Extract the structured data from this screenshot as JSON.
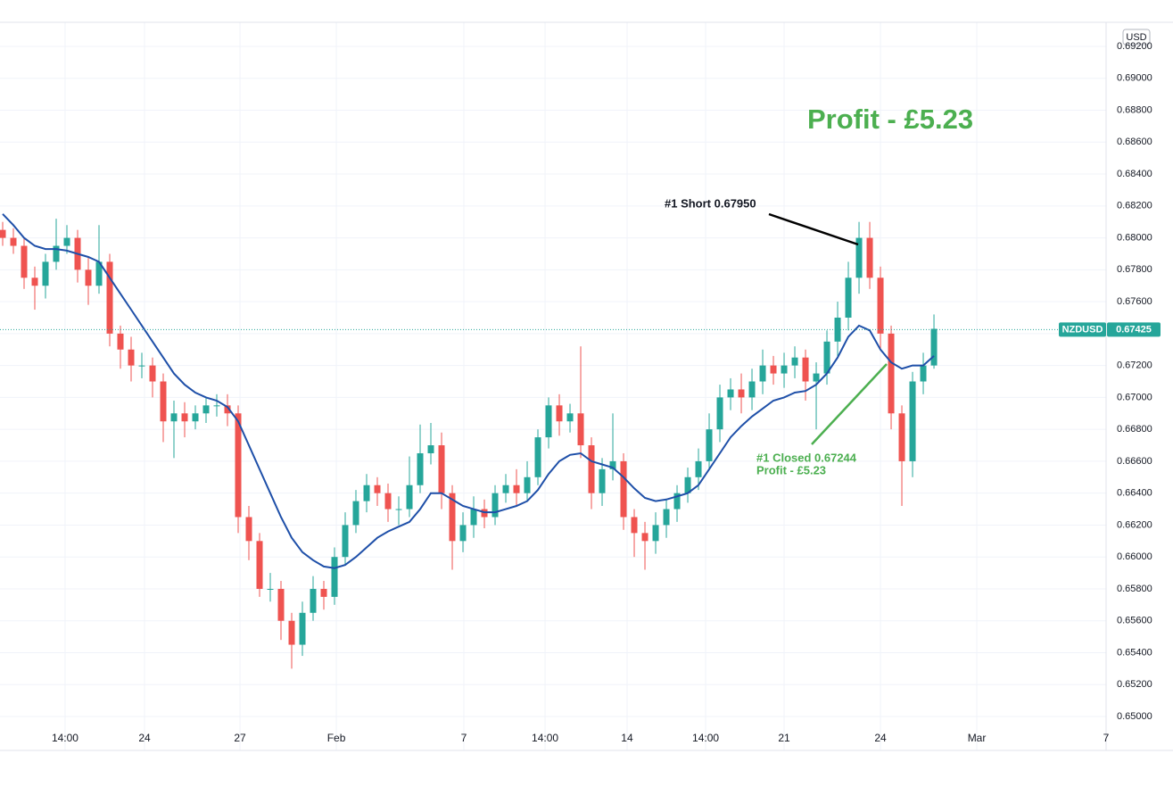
{
  "chart_data": {
    "type": "candlestick",
    "symbol": "NZDUSD",
    "currency": "USD",
    "last_price": 0.67425,
    "headline": "Profit - £5.23",
    "annotations": [
      "#1 Short 0.67950",
      "#1 Closed 0.67244",
      "Profit - £5.23"
    ],
    "up_color": "#26a69a",
    "down_color": "#ef5350",
    "ylim": [
      0.64933,
      0.69351
    ],
    "yticks": [
      {
        "value": 0.65,
        "label": "0.65000"
      },
      {
        "value": 0.652,
        "label": "0.65200"
      },
      {
        "value": 0.654,
        "label": "0.65400"
      },
      {
        "value": 0.656,
        "label": "0.65600"
      },
      {
        "value": 0.658,
        "label": "0.65800"
      },
      {
        "value": 0.66,
        "label": "0.66000"
      },
      {
        "value": 0.662,
        "label": "0.66200"
      },
      {
        "value": 0.664,
        "label": "0.66400"
      },
      {
        "value": 0.666,
        "label": "0.66600"
      },
      {
        "value": 0.668,
        "label": "0.66800"
      },
      {
        "value": 0.67,
        "label": "0.67000"
      },
      {
        "value": 0.672,
        "label": "0.67200"
      },
      {
        "value": 0.674,
        "label": "0.67400"
      },
      {
        "value": 0.676,
        "label": "0.67600"
      },
      {
        "value": 0.678,
        "label": "0.67800"
      },
      {
        "value": 0.68,
        "label": "0.68000"
      },
      {
        "value": 0.682,
        "label": "0.68200"
      },
      {
        "value": 0.684,
        "label": "0.68400"
      },
      {
        "value": 0.686,
        "label": "0.68600"
      },
      {
        "value": 0.688,
        "label": "0.68800"
      },
      {
        "value": 0.69,
        "label": "0.69000"
      },
      {
        "value": 0.692,
        "label": "0.69200"
      }
    ],
    "xlim": [
      -0.25,
      103.08
    ],
    "xticks": [
      {
        "value": 5.83,
        "label": "14:00"
      },
      {
        "value": 13.25,
        "label": "24"
      },
      {
        "value": 22.17,
        "label": "27"
      },
      {
        "value": 31.17,
        "label": "Feb"
      },
      {
        "value": 43.08,
        "label": "7"
      },
      {
        "value": 50.67,
        "label": "14:00"
      },
      {
        "value": 58.33,
        "label": "14"
      },
      {
        "value": 65.67,
        "label": "14:00"
      },
      {
        "value": 73,
        "label": "21"
      },
      {
        "value": 82,
        "label": "24"
      },
      {
        "value": 91,
        "label": "Mar"
      },
      {
        "value": 103.08,
        "label": "7"
      }
    ],
    "open": [
      0.6805,
      0.68,
      0.6795,
      0.6775,
      0.677,
      0.6785,
      0.6795,
      0.68,
      0.678,
      0.677,
      0.6785,
      0.674,
      0.673,
      0.672,
      0.672,
      0.671,
      0.6685,
      0.669,
      0.6685,
      0.669,
      0.6695,
      0.6695,
      0.669,
      0.6625,
      0.661,
      0.658,
      0.658,
      0.656,
      0.6545,
      0.6565,
      0.658,
      0.6575,
      0.66,
      0.662,
      0.6635,
      0.6645,
      0.664,
      0.663,
      0.663,
      0.6645,
      0.6665,
      0.667,
      0.664,
      0.661,
      0.662,
      0.663,
      0.6625,
      0.664,
      0.6645,
      0.664,
      0.665,
      0.6675,
      0.6695,
      0.6685,
      0.669,
      0.667,
      0.664,
      0.6655,
      0.666,
      0.6625,
      0.6615,
      0.661,
      0.662,
      0.663,
      0.664,
      0.665,
      0.666,
      0.668,
      0.67,
      0.6705,
      0.67,
      0.671,
      0.672,
      0.6715,
      0.672,
      0.6725,
      0.671,
      0.6715,
      0.6735,
      0.675,
      0.6775,
      0.68,
      0.6775,
      0.674,
      0.669,
      0.666,
      0.671,
      0.672
    ],
    "high": [
      0.681,
      0.6806,
      0.68,
      0.6782,
      0.679,
      0.6812,
      0.6808,
      0.6805,
      0.6788,
      0.6808,
      0.679,
      0.6745,
      0.6738,
      0.6728,
      0.6725,
      0.6715,
      0.6698,
      0.6697,
      0.6695,
      0.67,
      0.6702,
      0.6702,
      0.6695,
      0.6632,
      0.6615,
      0.659,
      0.6585,
      0.6565,
      0.6572,
      0.6588,
      0.6585,
      0.6606,
      0.6628,
      0.6642,
      0.6652,
      0.665,
      0.6646,
      0.6638,
      0.6663,
      0.6683,
      0.6684,
      0.6678,
      0.6645,
      0.6628,
      0.6638,
      0.6636,
      0.6645,
      0.6652,
      0.6655,
      0.666,
      0.668,
      0.67,
      0.6702,
      0.6696,
      0.6732,
      0.6675,
      0.6662,
      0.669,
      0.6665,
      0.663,
      0.6622,
      0.6628,
      0.6636,
      0.6645,
      0.6656,
      0.6668,
      0.669,
      0.6708,
      0.6712,
      0.6715,
      0.6718,
      0.673,
      0.6726,
      0.6728,
      0.6732,
      0.673,
      0.6722,
      0.6742,
      0.676,
      0.6785,
      0.681,
      0.681,
      0.6782,
      0.6745,
      0.6695,
      0.6716,
      0.6728,
      0.6752
    ],
    "low": [
      0.6795,
      0.679,
      0.6768,
      0.6755,
      0.6762,
      0.678,
      0.679,
      0.6772,
      0.6758,
      0.6765,
      0.6732,
      0.6718,
      0.671,
      0.6712,
      0.67,
      0.6672,
      0.6662,
      0.6675,
      0.668,
      0.6684,
      0.6688,
      0.6682,
      0.6615,
      0.6598,
      0.6575,
      0.6572,
      0.6548,
      0.653,
      0.6538,
      0.656,
      0.6567,
      0.657,
      0.6595,
      0.6615,
      0.6628,
      0.6632,
      0.6622,
      0.662,
      0.6625,
      0.664,
      0.6658,
      0.663,
      0.6592,
      0.6603,
      0.6612,
      0.6618,
      0.662,
      0.6634,
      0.6632,
      0.6635,
      0.6645,
      0.6668,
      0.6676,
      0.6678,
      0.6662,
      0.663,
      0.6632,
      0.6648,
      0.6617,
      0.66,
      0.6592,
      0.6602,
      0.6612,
      0.6622,
      0.6634,
      0.6642,
      0.6655,
      0.6672,
      0.6692,
      0.669,
      0.6692,
      0.6702,
      0.6708,
      0.6706,
      0.6712,
      0.6698,
      0.668,
      0.6708,
      0.6725,
      0.6742,
      0.6765,
      0.6768,
      0.673,
      0.668,
      0.6632,
      0.665,
      0.6702,
      0.6718
    ],
    "close": [
      0.68,
      0.6795,
      0.6775,
      0.677,
      0.6785,
      0.6795,
      0.68,
      0.678,
      0.677,
      0.6785,
      0.674,
      0.673,
      0.672,
      0.672,
      0.671,
      0.6685,
      0.669,
      0.6685,
      0.669,
      0.6695,
      0.6695,
      0.669,
      0.6625,
      0.661,
      0.658,
      0.658,
      0.656,
      0.6545,
      0.6565,
      0.658,
      0.6575,
      0.66,
      0.662,
      0.6635,
      0.6645,
      0.664,
      0.663,
      0.663,
      0.6645,
      0.6665,
      0.667,
      0.664,
      0.661,
      0.662,
      0.663,
      0.6625,
      0.664,
      0.6645,
      0.664,
      0.665,
      0.6675,
      0.6695,
      0.6685,
      0.669,
      0.667,
      0.664,
      0.6655,
      0.666,
      0.6625,
      0.6615,
      0.661,
      0.662,
      0.663,
      0.664,
      0.665,
      0.666,
      0.668,
      0.67,
      0.6705,
      0.67,
      0.671,
      0.672,
      0.6715,
      0.672,
      0.6725,
      0.671,
      0.6715,
      0.6735,
      0.675,
      0.6775,
      0.68,
      0.6775,
      0.674,
      0.669,
      0.666,
      0.671,
      0.672,
      0.6743
    ],
    "moving_average": {
      "color": "#1e4fa8",
      "values": [
        0.6815,
        0.6808,
        0.68,
        0.6795,
        0.6793,
        0.6793,
        0.6792,
        0.679,
        0.6788,
        0.6785,
        0.6775,
        0.6765,
        0.6755,
        0.6745,
        0.6735,
        0.6725,
        0.6715,
        0.6708,
        0.6703,
        0.67,
        0.6698,
        0.6694,
        0.6685,
        0.667,
        0.6655,
        0.664,
        0.6625,
        0.6612,
        0.6603,
        0.6598,
        0.6594,
        0.6593,
        0.6595,
        0.66,
        0.6606,
        0.6612,
        0.6616,
        0.6619,
        0.6622,
        0.663,
        0.664,
        0.664,
        0.6636,
        0.6632,
        0.663,
        0.6628,
        0.6628,
        0.663,
        0.6632,
        0.6635,
        0.6642,
        0.6652,
        0.666,
        0.6664,
        0.6665,
        0.666,
        0.6658,
        0.6656,
        0.665,
        0.6643,
        0.6637,
        0.6635,
        0.6636,
        0.6638,
        0.664,
        0.6645,
        0.6655,
        0.6665,
        0.6675,
        0.6682,
        0.6688,
        0.6693,
        0.6698,
        0.67,
        0.6703,
        0.6704,
        0.6708,
        0.6715,
        0.6725,
        0.6738,
        0.6745,
        0.6742,
        0.673,
        0.6722,
        0.6718,
        0.672,
        0.672,
        0.6726
      ]
    }
  }
}
